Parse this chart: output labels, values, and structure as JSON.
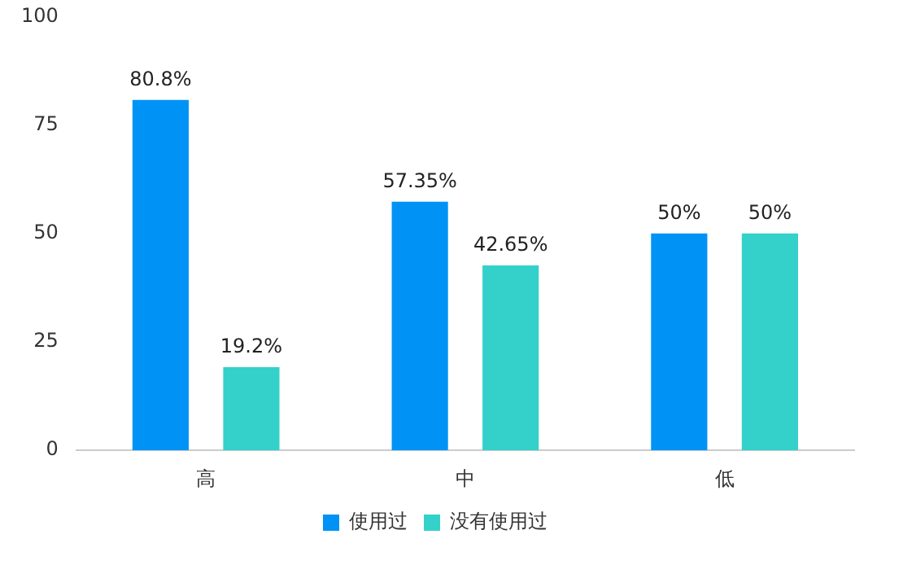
{
  "chart_data": {
    "type": "bar",
    "categories": [
      "高",
      "中",
      "低"
    ],
    "series": [
      {
        "name": "使用过",
        "color": "#0093f5",
        "values": [
          80.8,
          57.35,
          50
        ],
        "value_labels": [
          "80.8%",
          "57.35%",
          "50%"
        ]
      },
      {
        "name": "没有使用过",
        "color": "#33d1c9",
        "values": [
          19.2,
          42.65,
          50
        ],
        "value_labels": [
          "19.2%",
          "42.65%",
          "50%"
        ]
      }
    ],
    "ylim": [
      0,
      100
    ],
    "yticks": [
      0,
      25,
      50,
      75,
      100
    ],
    "grid": false,
    "legend": "bottom"
  }
}
